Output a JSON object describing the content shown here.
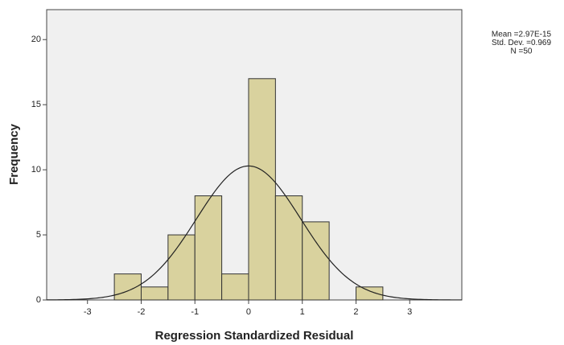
{
  "chart_data": {
    "type": "histogram",
    "x_label": "Regression Standardized Residual",
    "y_label": "Frequency",
    "bins": [
      -2.5,
      -2,
      -1.5,
      -1,
      -0.5,
      0,
      0.5,
      1,
      1.5,
      2,
      2.5
    ],
    "values": [
      2,
      1,
      5,
      8,
      2,
      17,
      8,
      6,
      0,
      1
    ],
    "color": "#d9d29e",
    "curve_color": "#222222",
    "stats": [
      {
        "value": 2.97e-15,
        "label": "Mean =2.97E-15"
      },
      {
        "value": 0.969,
        "label": "Std. Dev. =0.969"
      },
      {
        "value": 50,
        "label": "N =50"
      }
    ],
    "xlim": [
      -3.76,
      3.97
    ],
    "xticks": [
      -3,
      -2,
      -1,
      0,
      1,
      2,
      3
    ],
    "ylim": [
      0,
      22.3
    ],
    "yticks": [
      0,
      5,
      10,
      15,
      20
    ]
  }
}
